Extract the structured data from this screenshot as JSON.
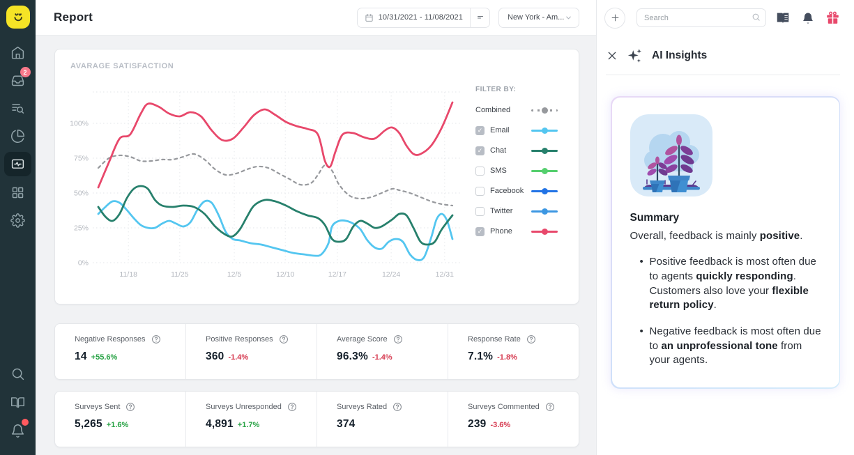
{
  "topbar": {
    "title": "Report",
    "date_range": "10/31/2021 - 11/08/2021",
    "location": "New York - Am...",
    "search_placeholder": "Search"
  },
  "sidebar": {
    "logo": "smiley-logo",
    "items": [
      {
        "icon": "home"
      },
      {
        "icon": "inbox",
        "badge": "2"
      },
      {
        "icon": "list-search"
      },
      {
        "icon": "pie-chart"
      },
      {
        "icon": "report-pulse",
        "active": true
      },
      {
        "icon": "grid"
      },
      {
        "icon": "settings"
      }
    ],
    "bottom_items": [
      {
        "icon": "search"
      },
      {
        "icon": "book-open"
      },
      {
        "icon": "bell",
        "dot": true
      }
    ]
  },
  "chart_card": {
    "title": "AVARAGE SATISFACTION",
    "filter_label": "FILTER BY:",
    "legend": [
      {
        "label": "Combined",
        "color": "#97999d",
        "dashed": true,
        "checkbox": false
      },
      {
        "label": "Email",
        "color": "#54c6f0",
        "checkbox": true,
        "checked": true
      },
      {
        "label": "Chat",
        "color": "#27806c",
        "checkbox": true,
        "checked": true
      },
      {
        "label": "SMS",
        "color": "#55cf6e",
        "checkbox": true,
        "checked": false
      },
      {
        "label": "Facebook",
        "color": "#2273e5",
        "checkbox": true,
        "checked": false
      },
      {
        "label": "Twitter",
        "color": "#3d97e2",
        "checkbox": true,
        "checked": false
      },
      {
        "label": "Phone",
        "color": "#e8486b",
        "checkbox": true,
        "checked": true
      }
    ]
  },
  "chart_data": {
    "type": "line",
    "title": "AVARAGE SATISFACTION",
    "xlabel": "",
    "ylabel": "",
    "ylim": [
      0,
      122.5
    ],
    "grid": true,
    "legend_position": "right",
    "yticks": [
      {
        "v": 0,
        "label": "0%"
      },
      {
        "v": 25,
        "label": "25%"
      },
      {
        "v": 50,
        "label": "50%"
      },
      {
        "v": 75,
        "label": "75%"
      },
      {
        "v": 100,
        "label": "100%"
      }
    ],
    "xticks": [
      {
        "f": 8.5,
        "label": "11/18"
      },
      {
        "f": 23.0,
        "label": "11/25"
      },
      {
        "f": 38.4,
        "label": "12/5"
      },
      {
        "f": 52.8,
        "label": "12/10"
      },
      {
        "f": 67.5,
        "label": "12/17"
      },
      {
        "f": 82.7,
        "label": "12/24"
      },
      {
        "f": 97.8,
        "label": "12/31"
      }
    ],
    "series": [
      {
        "name": "Combined",
        "color": "#97999d",
        "dashed": true,
        "points": [
          [
            0,
            68
          ],
          [
            3,
            75
          ],
          [
            6,
            77
          ],
          [
            9,
            76
          ],
          [
            12,
            73
          ],
          [
            15,
            73
          ],
          [
            18,
            74
          ],
          [
            21,
            74
          ],
          [
            24,
            76
          ],
          [
            27,
            78
          ],
          [
            30,
            74
          ],
          [
            33,
            67
          ],
          [
            36,
            63
          ],
          [
            39,
            64
          ],
          [
            42,
            67
          ],
          [
            45,
            69
          ],
          [
            48,
            68
          ],
          [
            51,
            64
          ],
          [
            54,
            60
          ],
          [
            57,
            56
          ],
          [
            60,
            57
          ],
          [
            62,
            63
          ],
          [
            64,
            70
          ],
          [
            66,
            66
          ],
          [
            68,
            56
          ],
          [
            71,
            48
          ],
          [
            74,
            46
          ],
          [
            77,
            47
          ],
          [
            80,
            50
          ],
          [
            83,
            53
          ],
          [
            85,
            52
          ],
          [
            88,
            50
          ],
          [
            91,
            47
          ],
          [
            94,
            44
          ],
          [
            97,
            42
          ],
          [
            100,
            41
          ]
        ]
      },
      {
        "name": "Email",
        "color": "#54c6f0",
        "dashed": false,
        "points": [
          [
            0,
            35
          ],
          [
            2,
            40
          ],
          [
            4,
            44
          ],
          [
            6,
            43
          ],
          [
            8,
            38
          ],
          [
            10,
            32
          ],
          [
            12,
            27
          ],
          [
            14,
            25
          ],
          [
            16,
            25
          ],
          [
            18,
            28
          ],
          [
            20,
            30
          ],
          [
            22,
            28
          ],
          [
            24,
            26
          ],
          [
            26,
            29
          ],
          [
            28,
            38
          ],
          [
            30,
            44
          ],
          [
            32,
            43
          ],
          [
            34,
            34
          ],
          [
            36,
            22
          ],
          [
            38,
            17
          ],
          [
            40,
            16
          ],
          [
            43,
            14
          ],
          [
            46,
            13
          ],
          [
            49,
            11
          ],
          [
            52,
            9
          ],
          [
            55,
            7
          ],
          [
            58,
            6
          ],
          [
            61,
            5
          ],
          [
            63,
            6
          ],
          [
            65,
            14
          ],
          [
            66,
            26
          ],
          [
            68,
            30
          ],
          [
            70,
            30
          ],
          [
            72,
            28
          ],
          [
            74,
            24
          ],
          [
            76,
            16
          ],
          [
            78,
            11
          ],
          [
            80,
            10
          ],
          [
            82,
            15
          ],
          [
            84,
            17
          ],
          [
            86,
            15
          ],
          [
            88,
            6
          ],
          [
            90,
            2
          ],
          [
            92,
            4
          ],
          [
            94,
            18
          ],
          [
            95.5,
            31
          ],
          [
            97,
            35
          ],
          [
            98.5,
            30
          ],
          [
            100,
            17
          ]
        ]
      },
      {
        "name": "Chat",
        "color": "#27806c",
        "dashed": false,
        "points": [
          [
            0,
            40
          ],
          [
            2,
            33
          ],
          [
            4,
            30
          ],
          [
            6,
            35
          ],
          [
            8,
            46
          ],
          [
            10,
            53
          ],
          [
            12,
            55
          ],
          [
            14,
            53
          ],
          [
            16,
            45
          ],
          [
            18,
            41
          ],
          [
            21,
            40
          ],
          [
            24,
            41
          ],
          [
            27,
            40
          ],
          [
            30,
            35
          ],
          [
            33,
            26
          ],
          [
            36,
            20
          ],
          [
            38,
            19
          ],
          [
            40,
            24
          ],
          [
            42,
            33
          ],
          [
            44,
            41
          ],
          [
            47,
            45
          ],
          [
            50,
            44
          ],
          [
            53,
            41
          ],
          [
            56,
            37
          ],
          [
            59,
            34
          ],
          [
            62,
            32
          ],
          [
            64,
            27
          ],
          [
            66,
            17
          ],
          [
            68,
            15
          ],
          [
            70,
            17
          ],
          [
            72,
            26
          ],
          [
            74,
            30
          ],
          [
            76,
            28
          ],
          [
            78,
            25
          ],
          [
            80,
            26
          ],
          [
            83,
            31
          ],
          [
            85,
            35
          ],
          [
            87,
            34
          ],
          [
            89,
            25
          ],
          [
            91,
            15
          ],
          [
            93,
            13
          ],
          [
            95,
            15
          ],
          [
            97,
            24
          ],
          [
            100,
            34
          ]
        ]
      },
      {
        "name": "Phone",
        "color": "#e8486b",
        "dashed": false,
        "points": [
          [
            0,
            54
          ],
          [
            3,
            72
          ],
          [
            6,
            89
          ],
          [
            9,
            92
          ],
          [
            12,
            107
          ],
          [
            14,
            114
          ],
          [
            17,
            112
          ],
          [
            20,
            107
          ],
          [
            23,
            105
          ],
          [
            26,
            108
          ],
          [
            29,
            105
          ],
          [
            32,
            95
          ],
          [
            35,
            88
          ],
          [
            38,
            89
          ],
          [
            41,
            97
          ],
          [
            44,
            106
          ],
          [
            47,
            110
          ],
          [
            50,
            106
          ],
          [
            53,
            101
          ],
          [
            56,
            98
          ],
          [
            59,
            96
          ],
          [
            62,
            92
          ],
          [
            64,
            73
          ],
          [
            65.5,
            69
          ],
          [
            67,
            80
          ],
          [
            69,
            92
          ],
          [
            72,
            93
          ],
          [
            75,
            90
          ],
          [
            78,
            89
          ],
          [
            81,
            95
          ],
          [
            83,
            97
          ],
          [
            85,
            93
          ],
          [
            87,
            84
          ],
          [
            89,
            78
          ],
          [
            91,
            78
          ],
          [
            94,
            84
          ],
          [
            97,
            97
          ],
          [
            100,
            115
          ]
        ]
      }
    ]
  },
  "stats": {
    "rows": [
      {
        "cells": [
          {
            "label": "Negative Responses",
            "value": "14",
            "delta": "+55.6%",
            "dir": "up"
          },
          {
            "label": "Positive Responses",
            "value": "360",
            "delta": "-1.4%",
            "dir": "down"
          },
          {
            "label": "Average Score",
            "value": "96.3%",
            "delta": "-1.4%",
            "dir": "down"
          },
          {
            "label": "Response Rate",
            "value": "7.1%",
            "delta": "-1.8%",
            "dir": "down"
          }
        ]
      },
      {
        "cells": [
          {
            "label": "Surveys Sent",
            "value": "5,265",
            "delta": "+1.6%",
            "dir": "up"
          },
          {
            "label": "Surveys Unresponded",
            "value": "4,891",
            "delta": "+1.7%",
            "dir": "up"
          },
          {
            "label": "Surveys Rated",
            "value": "374",
            "delta": null,
            "dir": null
          },
          {
            "label": "Surveys Commented",
            "value": "239",
            "delta": "-3.6%",
            "dir": "down"
          }
        ]
      }
    ],
    "delta_up_color": "#27a244",
    "delta_down_color": "#d6394f"
  },
  "ai_panel": {
    "title": "AI Insights",
    "summary_heading": "Summary",
    "intro": [
      {
        "t": "Overall, feedback is mainly "
      },
      {
        "t": "positive",
        "b": true
      },
      {
        "t": "."
      }
    ],
    "bullets": [
      [
        {
          "t": "Positive feedback is most often due to agents "
        },
        {
          "t": "quickly responding",
          "b": true
        },
        {
          "t": ". Customers also love your "
        },
        {
          "t": "flexible return policy",
          "b": true
        },
        {
          "t": "."
        }
      ],
      [
        {
          "t": "Negative feedback is most often due to "
        },
        {
          "t": "an unprofessional tone",
          "b": true
        },
        {
          "t": " from your agents."
        }
      ]
    ],
    "illustration": "potted-plants"
  },
  "colors": {
    "sidebar_bg": "#213339",
    "accent_yellow": "#f5e426",
    "badge_pink": "#f8788a",
    "gift_red": "#e8486b",
    "main_bg": "#f1f2f4"
  }
}
